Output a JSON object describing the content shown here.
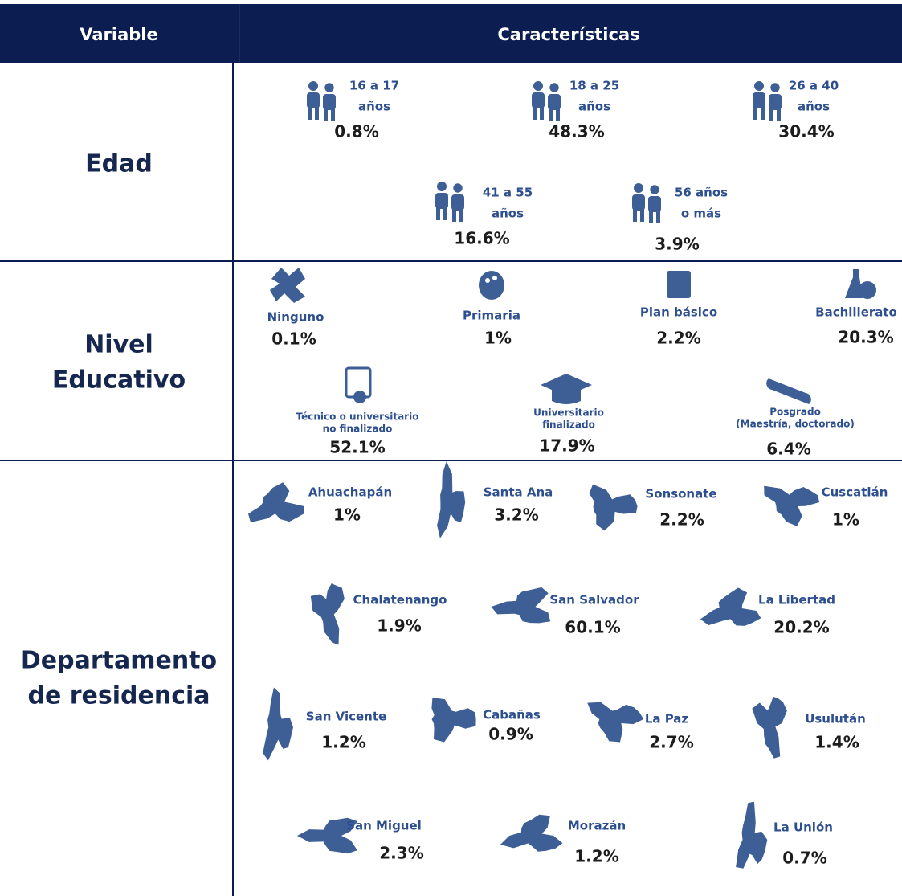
{
  "header": {
    "variable": "Variable",
    "characteristics": "Características"
  },
  "rows": [
    {
      "label": [
        "Edad"
      ],
      "items": [
        {
          "label": [
            "16 a 17",
            "años"
          ],
          "value": "0.8%"
        },
        {
          "label": [
            "18 a 25",
            "años"
          ],
          "value": "48.3%"
        },
        {
          "label": [
            "26 a 40",
            "años"
          ],
          "value": "30.4%"
        },
        {
          "label": [
            "41 a 55",
            "años"
          ],
          "value": "16.6%"
        },
        {
          "label": [
            "56 años",
            "o más"
          ],
          "value": "3.9%"
        }
      ]
    },
    {
      "label": [
        "Nivel",
        "Educativo"
      ],
      "items": [
        {
          "label": [
            "Ninguno"
          ],
          "value": "0.1%"
        },
        {
          "label": [
            "Primaria"
          ],
          "value": "1%"
        },
        {
          "label": [
            "Plan básico"
          ],
          "value": "2.2%"
        },
        {
          "label": [
            "Bachillerato"
          ],
          "value": "20.3%"
        },
        {
          "label": [
            "Técnico o universitario",
            "no finalizado"
          ],
          "value": "52.1%"
        },
        {
          "label": [
            "Universitario",
            "finalizado"
          ],
          "value": "17.9%"
        },
        {
          "label": [
            "Posgrado",
            "(Maestría, doctorado)"
          ],
          "value": "6.4%"
        }
      ]
    },
    {
      "label": [
        "Departamento",
        "de residencia"
      ],
      "items": [
        {
          "label": [
            "Ahuachapán"
          ],
          "value": "1%"
        },
        {
          "label": [
            "Santa Ana"
          ],
          "value": "3.2%"
        },
        {
          "label": [
            "Sonsonate"
          ],
          "value": "2.2%"
        },
        {
          "label": [
            "Cuscatlán"
          ],
          "value": "1%"
        },
        {
          "label": [
            "Chalatenango"
          ],
          "value": "1.9%"
        },
        {
          "label": [
            "San Salvador"
          ],
          "value": "60.1%"
        },
        {
          "label": [
            "La Libertad"
          ],
          "value": "20.2%"
        },
        {
          "label": [
            "San Vicente"
          ],
          "value": "1.2%"
        },
        {
          "label": [
            "Cabañas"
          ],
          "value": "0.9%"
        },
        {
          "label": [
            "La Paz"
          ],
          "value": "2.7%"
        },
        {
          "label": [
            "Usulután"
          ],
          "value": "1.4%"
        },
        {
          "label": [
            "San Miguel"
          ],
          "value": "2.3%"
        },
        {
          "label": [
            "Morazán"
          ],
          "value": "1.2%"
        },
        {
          "label": [
            "La Unión"
          ],
          "value": "0.7%"
        }
      ]
    }
  ]
}
